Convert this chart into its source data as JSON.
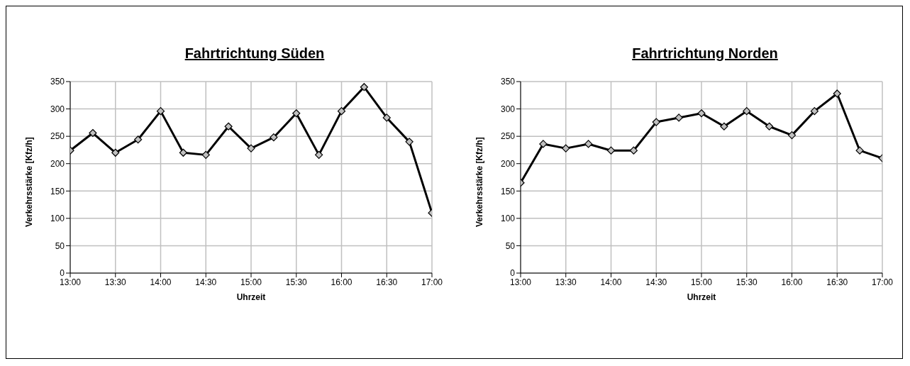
{
  "chart_data": [
    {
      "type": "line",
      "title": "Fahrtrichtung Süden",
      "xlabel": "Uhrzeit",
      "ylabel": "Verkehrsstärke [Kfz/h]",
      "x": [
        13,
        13.25,
        13.5,
        13.75,
        14,
        14.25,
        14.5,
        14.75,
        15,
        15.25,
        15.5,
        15.75,
        16,
        16.25,
        16.5,
        16.75,
        17
      ],
      "series": [
        {
          "color": "#000000",
          "values": [
            224,
            256,
            220,
            244,
            296,
            220,
            216,
            268,
            228,
            248,
            292,
            216,
            296,
            340,
            284,
            240,
            110
          ]
        }
      ],
      "xlim": [
        13,
        17
      ],
      "xticks": [
        {
          "value": 13,
          "label": "13:00"
        },
        {
          "value": 13.5,
          "label": "13:30"
        },
        {
          "value": 14,
          "label": "14:00"
        },
        {
          "value": 14.5,
          "label": "14:30"
        },
        {
          "value": 15,
          "label": "15:00"
        },
        {
          "value": 15.5,
          "label": "15:30"
        },
        {
          "value": 16,
          "label": "16:00"
        },
        {
          "value": 16.5,
          "label": "16:30"
        },
        {
          "value": 17,
          "label": "17:00"
        }
      ],
      "ylim": [
        0,
        350
      ],
      "yticks": [
        0,
        50,
        100,
        150,
        200,
        250,
        300,
        350
      ],
      "grid": true,
      "marker": "diamond",
      "line_style": "solid",
      "legend": false
    },
    {
      "type": "line",
      "title": "Fahrtrichtung Norden",
      "xlabel": "Uhrzeit",
      "ylabel": "Verkehrsstärke [Kfz/h]",
      "x": [
        13,
        13.25,
        13.5,
        13.75,
        14,
        14.25,
        14.5,
        14.75,
        15,
        15.25,
        15.5,
        15.75,
        16,
        16.25,
        16.5,
        16.75,
        17
      ],
      "series": [
        {
          "color": "#000000",
          "values": [
            165,
            236,
            228,
            236,
            224,
            224,
            276,
            284,
            292,
            268,
            296,
            268,
            252,
            296,
            328,
            224,
            210
          ]
        }
      ],
      "xlim": [
        13,
        17
      ],
      "xticks": [
        {
          "value": 13,
          "label": "13:00"
        },
        {
          "value": 13.5,
          "label": "13:30"
        },
        {
          "value": 14,
          "label": "14:00"
        },
        {
          "value": 14.5,
          "label": "14:30"
        },
        {
          "value": 15,
          "label": "15:00"
        },
        {
          "value": 15.5,
          "label": "15:30"
        },
        {
          "value": 16,
          "label": "16:00"
        },
        {
          "value": 16.5,
          "label": "16:30"
        },
        {
          "value": 17,
          "label": "17:00"
        }
      ],
      "ylim": [
        0,
        350
      ],
      "yticks": [
        0,
        50,
        100,
        150,
        200,
        250,
        300,
        350
      ],
      "grid": true,
      "marker": "diamond",
      "line_style": "solid",
      "legend": false
    }
  ]
}
